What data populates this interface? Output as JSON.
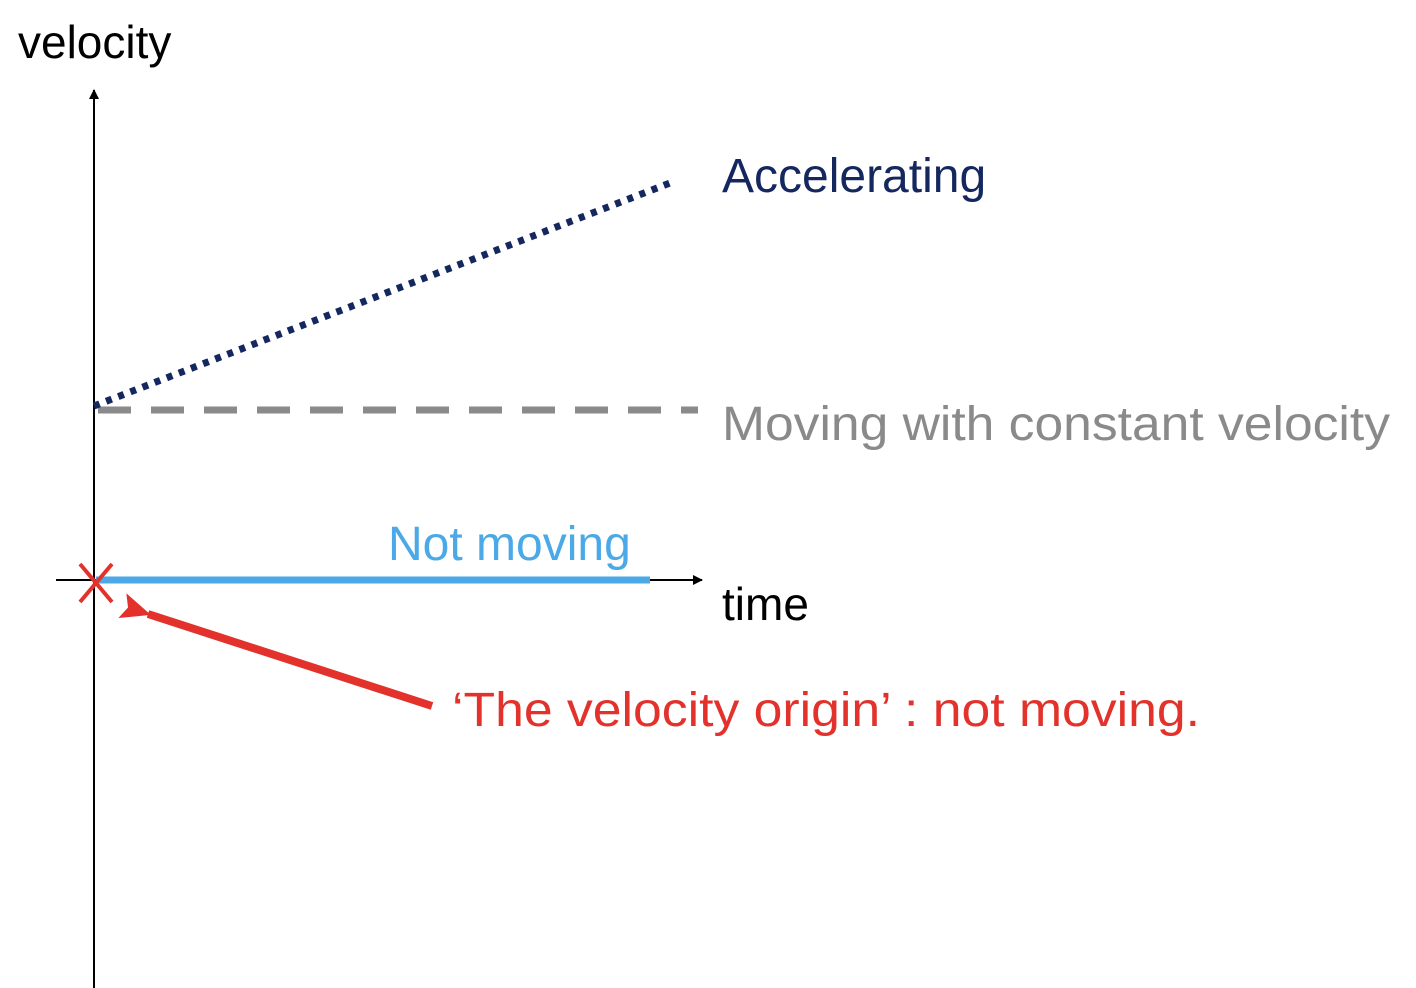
{
  "diagram": {
    "axes": {
      "y_label": "velocity",
      "x_label": "time"
    },
    "lines": [
      {
        "name": "accelerating",
        "label": "Accelerating",
        "style": "dotted",
        "color": "#14275e"
      },
      {
        "name": "constant-velocity",
        "label": "Moving with constant velocity",
        "style": "dashed",
        "color": "#8a8a8a"
      },
      {
        "name": "not-moving",
        "label": "Not moving",
        "style": "solid",
        "color": "#4aa9e6"
      }
    ],
    "origin": {
      "marker": "X",
      "marker_color": "#e2322b",
      "annotation": "‘The velocity origin’ : not moving.",
      "annotation_color": "#e2322b"
    },
    "axis_color": "#000000"
  }
}
